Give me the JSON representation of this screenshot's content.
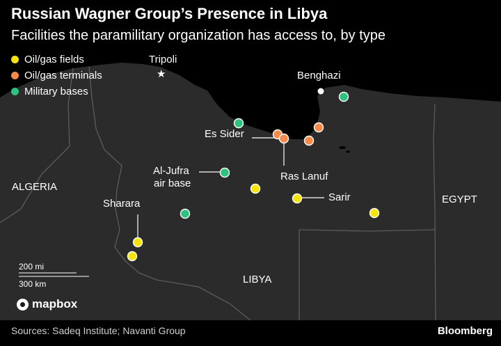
{
  "title": "Russian Wagner Group’s Presence in Libya",
  "subtitle": "Facilities the paramilitary organization has access to, by type",
  "legend": [
    {
      "label": "Oil/gas fields",
      "color": "#f5e50d"
    },
    {
      "label": "Oil/gas terminals",
      "color": "#f58a4b"
    },
    {
      "label": "Military bases",
      "color": "#2ec27e"
    }
  ],
  "map": {
    "land_color": "#2b2b2b",
    "sea_color": "#000000",
    "border_color": "#5c5c5c",
    "countries": [
      "ALGERIA",
      "LIBYA",
      "EGYPT"
    ],
    "cities": [
      "Tripoli",
      "Benghazi"
    ],
    "site_labels": [
      "Es Sider",
      "Ras Lanuf",
      "Al-Jufra",
      "air base",
      "Sharara",
      "Sarir"
    ],
    "scale": {
      "miles": "200 mi",
      "km": "300 km"
    }
  },
  "attribution": "mapbox",
  "source": "Sources: Sadeq Institute; Navanti Group",
  "brand": "Bloomberg"
}
